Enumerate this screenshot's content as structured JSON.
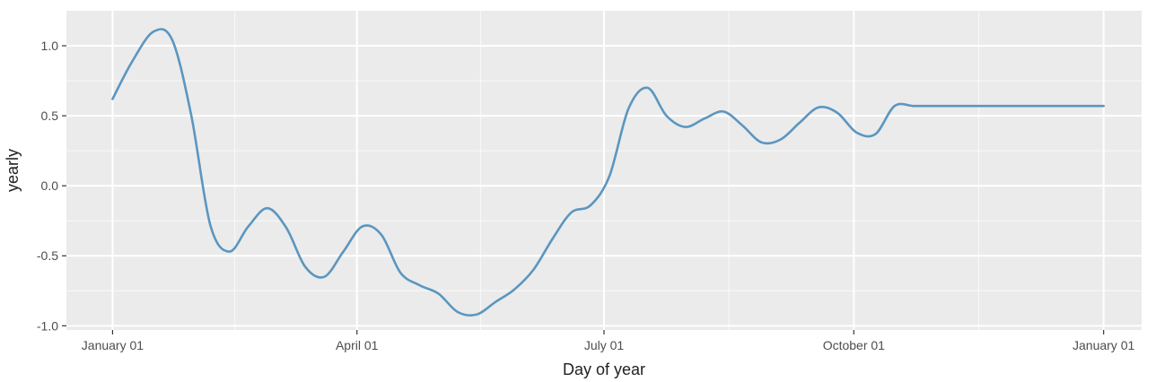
{
  "chart_data": {
    "type": "line",
    "title": "",
    "xlabel": "Day of year",
    "ylabel": "yearly",
    "x_ticks": [
      {
        "day": 1,
        "label": "January 01"
      },
      {
        "day": 91,
        "label": "April 01"
      },
      {
        "day": 182,
        "label": "July 01"
      },
      {
        "day": 274,
        "label": "October 01"
      },
      {
        "day": 366,
        "label": "January 01"
      }
    ],
    "y_ticks": [
      {
        "value": -1.0,
        "label": "-1.0"
      },
      {
        "value": -0.5,
        "label": "-0.5"
      },
      {
        "value": 0.0,
        "label": "0.0"
      },
      {
        "value": 0.5,
        "label": "0.5"
      },
      {
        "value": 1.0,
        "label": "1.0"
      }
    ],
    "xlim": [
      -16,
      380
    ],
    "ylim": [
      -1.03,
      1.25
    ],
    "grid": true,
    "background": "#ebebeb",
    "gridline_color": "#ffffff",
    "series": [
      {
        "color": "#5b96c0",
        "x": [
          1,
          8,
          16,
          23,
          30,
          37,
          44,
          51,
          58,
          65,
          72,
          79,
          86,
          93,
          100,
          107,
          114,
          121,
          128,
          135,
          142,
          149,
          156,
          163,
          170,
          177,
          184,
          191,
          198,
          205,
          212,
          219,
          226,
          233,
          240,
          247,
          254,
          261,
          268,
          275,
          282,
          289,
          296,
          303,
          310,
          317,
          324,
          331,
          338,
          345,
          352,
          359,
          366
        ],
        "y": [
          0.62,
          0.88,
          1.1,
          1.04,
          0.5,
          -0.28,
          -0.47,
          -0.29,
          -0.16,
          -0.3,
          -0.58,
          -0.65,
          -0.47,
          -0.29,
          -0.35,
          -0.62,
          -0.71,
          -0.77,
          -0.9,
          -0.92,
          -0.83,
          -0.74,
          -0.6,
          -0.38,
          -0.19,
          -0.14,
          0.07,
          0.55,
          0.7,
          0.5,
          0.42,
          0.48,
          0.53,
          0.43,
          0.31,
          0.33,
          0.45,
          0.56,
          0.52,
          0.38,
          0.37,
          0.57,
          0.57,
          0.57,
          0.57,
          0.57,
          0.57,
          0.57,
          0.57,
          0.57,
          0.57,
          0.57,
          0.57
        ]
      }
    ]
  }
}
